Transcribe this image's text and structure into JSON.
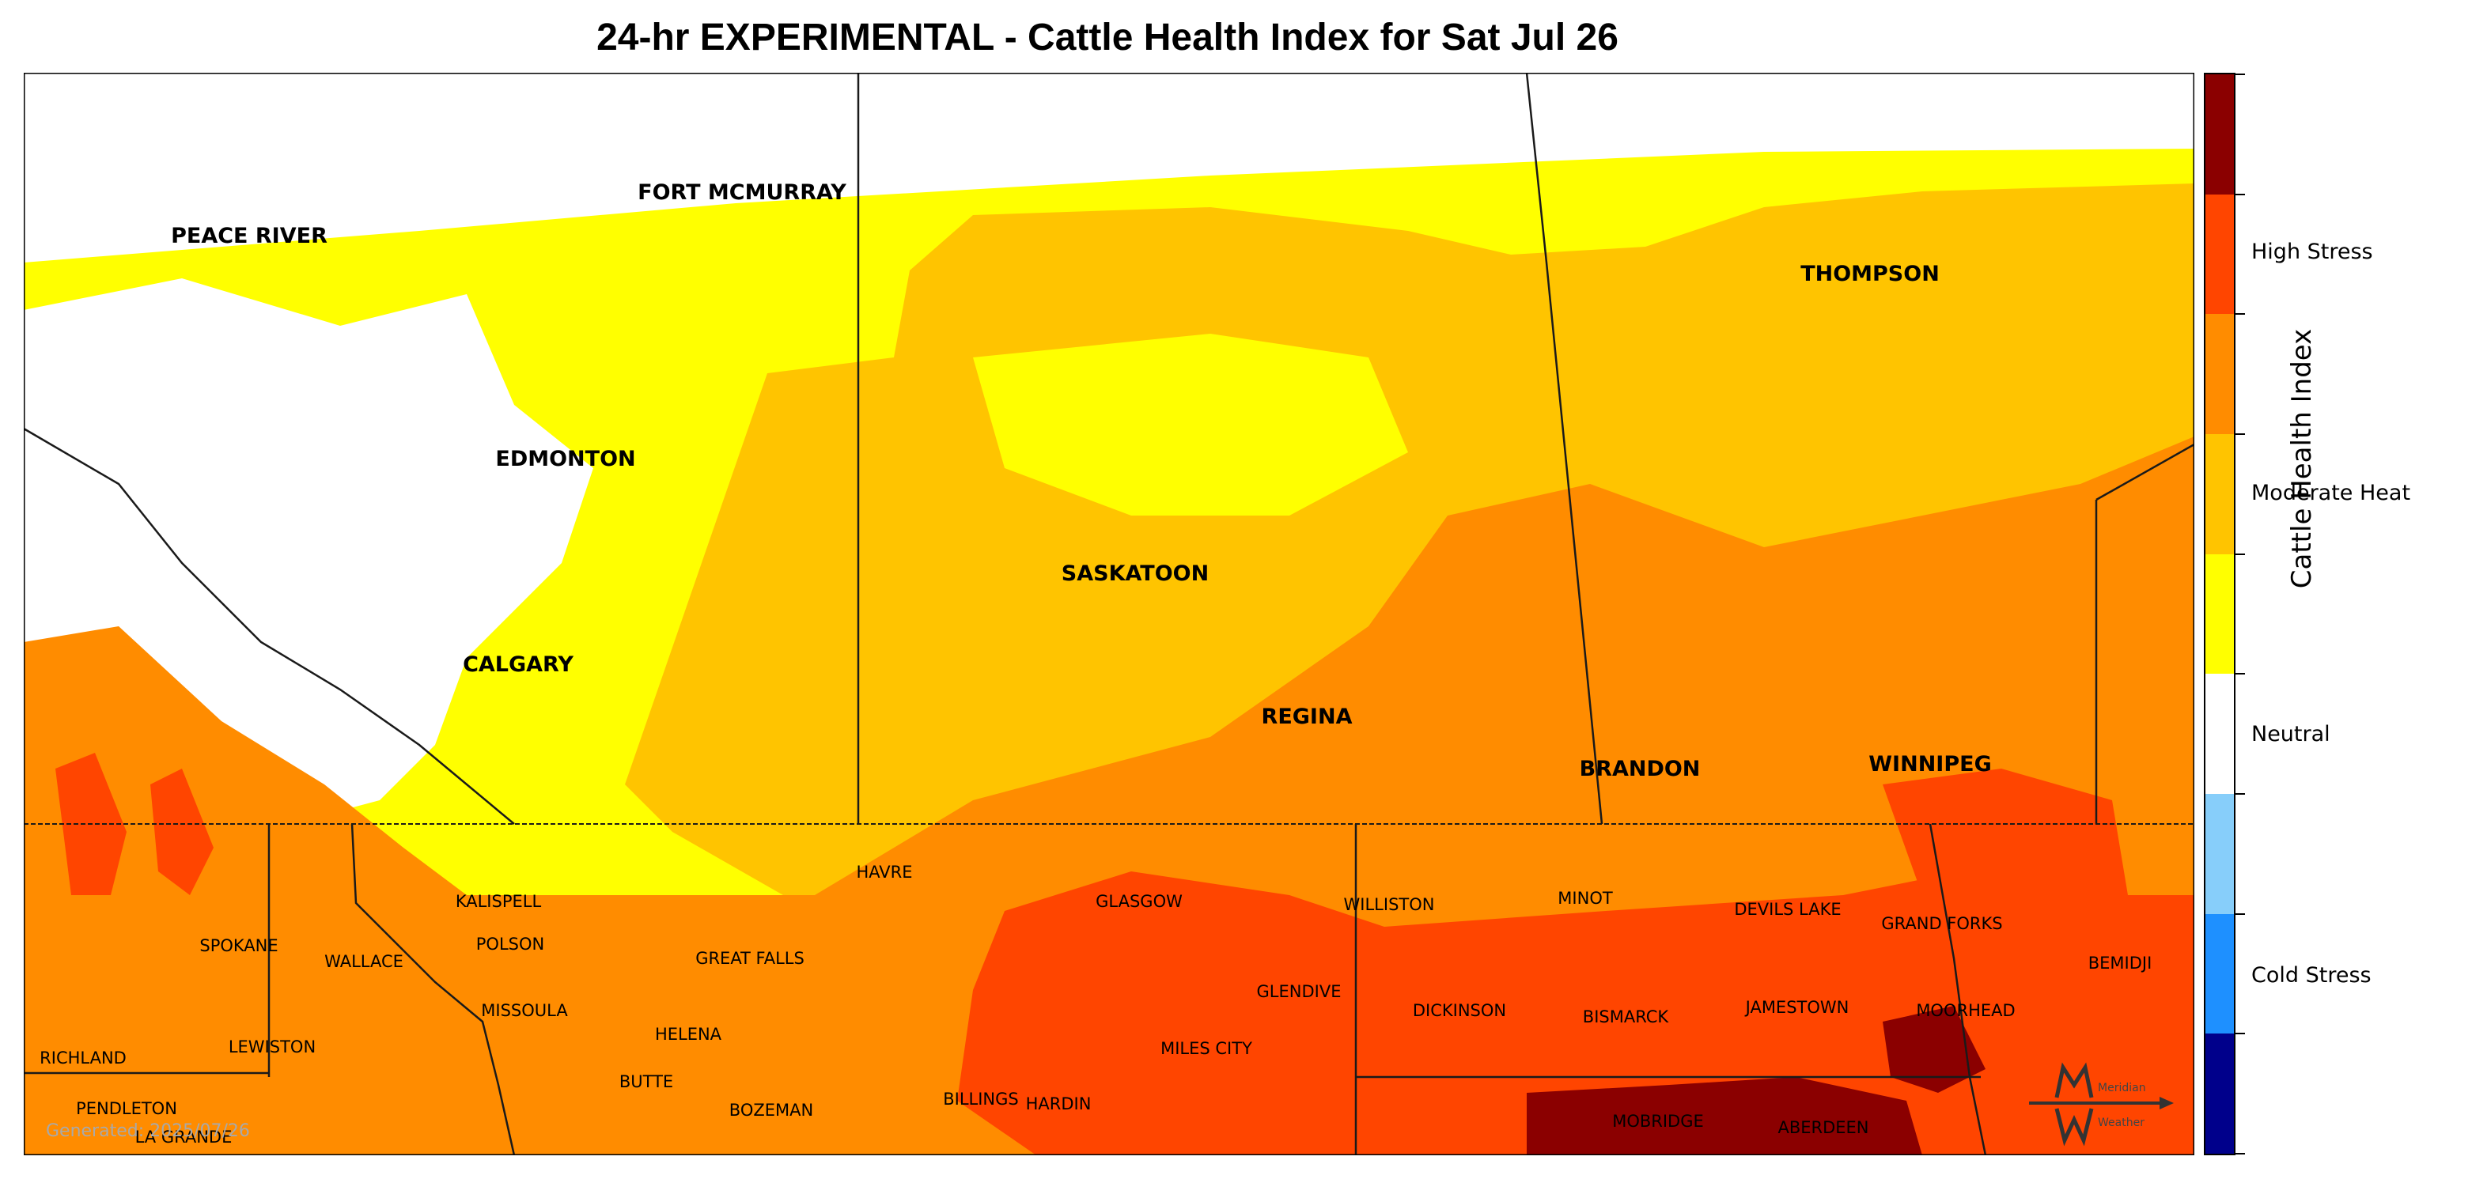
{
  "title": "24-hr EXPERIMENTAL - Cattle Health Index for Sat Jul 26",
  "generated_text": "Generated: 2025/07/26",
  "legend": {
    "axis_label": "Cattle Health Index",
    "labels": [
      "High Stress",
      "Moderate Heat",
      "Neutral",
      "Cold Stress"
    ],
    "colors": [
      "#8b0000",
      "#ff4500",
      "#ff8c00",
      "#ffc400",
      "#ffff00",
      "#ffffff",
      "#87cefa",
      "#1e90ff",
      "#00008b"
    ]
  },
  "regions": {
    "canada": [
      "PEACE RIVER",
      "FORT MCMURRAY",
      "EDMONTON",
      "CALGARY",
      "SASKATOON",
      "REGINA",
      "THOMPSON",
      "BRANDON",
      "WINNIPEG"
    ],
    "usa": [
      "HAVRE",
      "GLASGOW",
      "WILLISTON",
      "MINOT",
      "DEVILS LAKE",
      "GRAND FORKS",
      "BEMIDJI",
      "KALISPELL",
      "SPOKANE",
      "WALLACE",
      "POLSON",
      "GREAT FALLS",
      "GLENDIVE",
      "DICKINSON",
      "BISMARCK",
      "JAMESTOWN",
      "MOORHEAD",
      "MISSOULA",
      "HELENA",
      "RICHLAND",
      "LEWISTON",
      "MILES CITY",
      "BUTTE",
      "BILLINGS",
      "HARDIN",
      "BOZEMAN",
      "PENDLETON",
      "MOBRIDGE",
      "ABERDEEN",
      "LA GRANDE"
    ]
  },
  "logo_text": [
    "Meridian",
    "Weather"
  ]
}
